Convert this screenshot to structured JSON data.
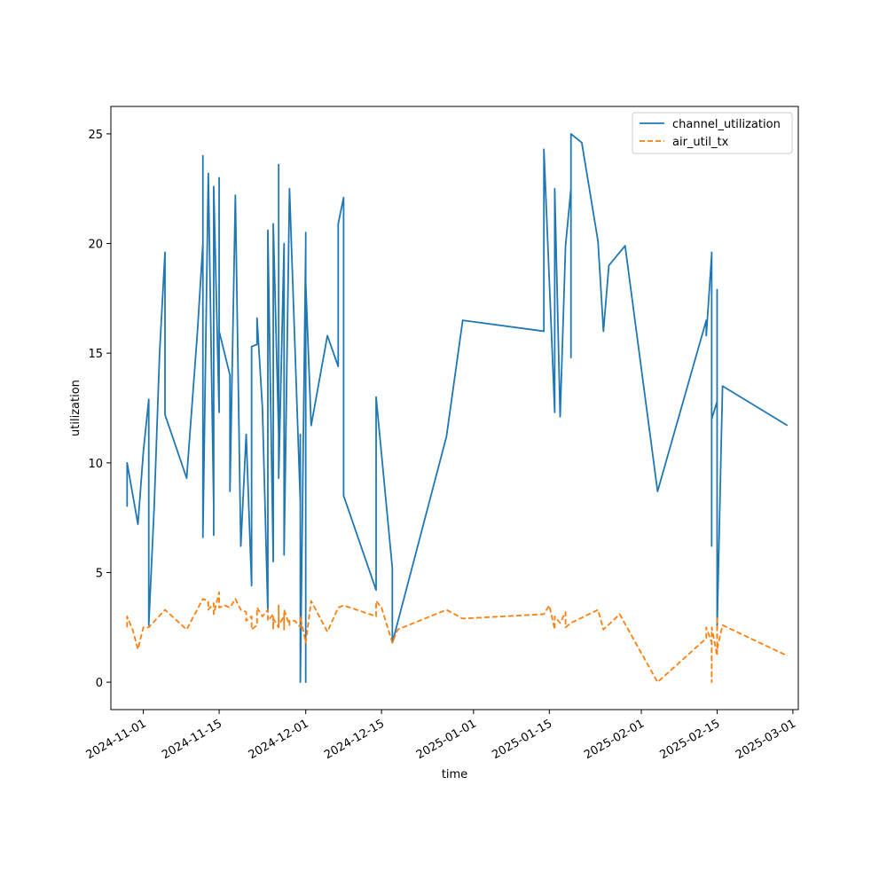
{
  "chart_data": {
    "type": "line",
    "title": "",
    "xlabel": "time",
    "ylabel": "utilization",
    "x_axis_type": "date",
    "xlim": [
      "2024-10-26",
      "2025-03-02"
    ],
    "ylim": [
      -1.25,
      26.25
    ],
    "grid": false,
    "legend_position": "upper right",
    "x_ticks": [
      "2024-11-01",
      "2024-11-15",
      "2024-12-01",
      "2024-12-15",
      "2025-01-01",
      "2025-01-15",
      "2025-02-01",
      "2025-02-15",
      "2025-03-01"
    ],
    "y_ticks": [
      0,
      5,
      10,
      15,
      20,
      25
    ],
    "series": [
      {
        "name": "channel_utilization",
        "color": "#1f77b4",
        "line_style": "solid",
        "points": [
          [
            "2024-10-29",
            8.0
          ],
          [
            "2024-10-29",
            10.0
          ],
          [
            "2024-10-31",
            7.2
          ],
          [
            "2024-11-01",
            10.5
          ],
          [
            "2024-11-02",
            12.9
          ],
          [
            "2024-11-02",
            2.6
          ],
          [
            "2024-11-03",
            8.0
          ],
          [
            "2024-11-04",
            15.0
          ],
          [
            "2024-11-05",
            19.6
          ],
          [
            "2024-11-05",
            12.2
          ],
          [
            "2024-11-09",
            9.3
          ],
          [
            "2024-11-11",
            16.0
          ],
          [
            "2024-11-12",
            20.0
          ],
          [
            "2024-11-12",
            16.8
          ],
          [
            "2024-11-12",
            24.0
          ],
          [
            "2024-11-12",
            6.6
          ],
          [
            "2024-11-13",
            23.2
          ],
          [
            "2024-11-14",
            8.0
          ],
          [
            "2024-11-14",
            19.4
          ],
          [
            "2024-11-14",
            6.7
          ],
          [
            "2024-11-14",
            22.6
          ],
          [
            "2024-11-15",
            12.3
          ],
          [
            "2024-11-15",
            23.0
          ],
          [
            "2024-11-15",
            16.0
          ],
          [
            "2024-11-17",
            14.0
          ],
          [
            "2024-11-17",
            8.7
          ],
          [
            "2024-11-18",
            22.2
          ],
          [
            "2024-11-19",
            6.2
          ],
          [
            "2024-11-20",
            11.3
          ],
          [
            "2024-11-21",
            4.4
          ],
          [
            "2024-11-21",
            15.3
          ],
          [
            "2024-11-22",
            15.4
          ],
          [
            "2024-11-22",
            16.6
          ],
          [
            "2024-11-23",
            12.5
          ],
          [
            "2024-11-24",
            3.2
          ],
          [
            "2024-11-24",
            7.0
          ],
          [
            "2024-11-24",
            5.0
          ],
          [
            "2024-11-24",
            20.6
          ],
          [
            "2024-11-25",
            5.5
          ],
          [
            "2024-11-25",
            20.9
          ],
          [
            "2024-11-26",
            11.3
          ],
          [
            "2024-11-26",
            23.6
          ],
          [
            "2024-11-26",
            9.3
          ],
          [
            "2024-11-27",
            20.0
          ],
          [
            "2024-11-27",
            5.8
          ],
          [
            "2024-11-28",
            22.5
          ],
          [
            "2024-11-28",
            22.5
          ],
          [
            "2024-11-30",
            8.2
          ],
          [
            "2024-11-30",
            11.3
          ],
          [
            "2024-11-30",
            8.2
          ],
          [
            "2024-11-30",
            5.0
          ],
          [
            "2024-11-30",
            0.0
          ],
          [
            "2024-12-01",
            20.0
          ],
          [
            "2024-12-01",
            0.0
          ],
          [
            "2024-12-01",
            20.5
          ],
          [
            "2024-12-01",
            18.2
          ],
          [
            "2024-12-02",
            11.7
          ],
          [
            "2024-12-05",
            15.8
          ],
          [
            "2024-12-07",
            14.4
          ],
          [
            "2024-12-07",
            20.9
          ],
          [
            "2024-12-08",
            22.1
          ],
          [
            "2024-12-08",
            8.5
          ],
          [
            "2024-12-14",
            4.2
          ],
          [
            "2024-12-14",
            13.0
          ],
          [
            "2024-12-17",
            5.2
          ],
          [
            "2024-12-17",
            1.8
          ],
          [
            "2024-12-27",
            11.2
          ],
          [
            "2024-12-30",
            16.5
          ],
          [
            "2025-01-14",
            16.0
          ],
          [
            "2025-01-14",
            24.3
          ],
          [
            "2025-01-16",
            12.3
          ],
          [
            "2025-01-16",
            22.5
          ],
          [
            "2025-01-17",
            12.1
          ],
          [
            "2025-01-18",
            19.9
          ],
          [
            "2025-01-19",
            22.5
          ],
          [
            "2025-01-19",
            14.8
          ],
          [
            "2025-01-19",
            25.0
          ],
          [
            "2025-01-21",
            24.6
          ],
          [
            "2025-01-24",
            20.1
          ],
          [
            "2025-01-25",
            16.0
          ],
          [
            "2025-01-26",
            19.0
          ],
          [
            "2025-01-29",
            19.9
          ],
          [
            "2025-02-04",
            8.7
          ],
          [
            "2025-02-13",
            16.5
          ],
          [
            "2025-02-13",
            15.8
          ],
          [
            "2025-02-14",
            19.5
          ],
          [
            "2025-02-14",
            6.2
          ],
          [
            "2025-02-14",
            19.6
          ],
          [
            "2025-02-14",
            12.0
          ],
          [
            "2025-02-15",
            12.8
          ],
          [
            "2025-02-15",
            17.9
          ],
          [
            "2025-02-15",
            2.5
          ],
          [
            "2025-02-16",
            13.5
          ],
          [
            "2025-02-28",
            11.7
          ]
        ]
      },
      {
        "name": "air_util_tx",
        "color": "#ff7f0e",
        "line_style": "dashed",
        "points": [
          [
            "2024-10-29",
            2.5
          ],
          [
            "2024-10-29",
            3.0
          ],
          [
            "2024-10-30",
            2.4
          ],
          [
            "2024-10-31",
            1.5
          ],
          [
            "2024-11-01",
            2.5
          ],
          [
            "2024-11-02",
            2.5
          ],
          [
            "2024-11-05",
            3.3
          ],
          [
            "2024-11-09",
            2.4
          ],
          [
            "2024-11-12",
            3.8
          ],
          [
            "2024-11-13",
            3.7
          ],
          [
            "2024-11-13",
            3.3
          ],
          [
            "2024-11-14",
            3.6
          ],
          [
            "2024-11-14",
            3.1
          ],
          [
            "2024-11-15",
            4.1
          ],
          [
            "2024-11-15",
            3.4
          ],
          [
            "2024-11-16",
            3.5
          ],
          [
            "2024-11-17",
            3.4
          ],
          [
            "2024-11-18",
            3.8
          ],
          [
            "2024-11-19",
            3.3
          ],
          [
            "2024-11-20",
            3.2
          ],
          [
            "2024-11-20",
            2.8
          ],
          [
            "2024-11-21",
            3.0
          ],
          [
            "2024-11-21",
            2.4
          ],
          [
            "2024-11-22",
            2.6
          ],
          [
            "2024-11-22",
            3.4
          ],
          [
            "2024-11-23",
            3.0
          ],
          [
            "2024-11-24",
            3.3
          ],
          [
            "2024-11-24",
            2.8
          ],
          [
            "2024-11-25",
            3.1
          ],
          [
            "2024-11-25",
            2.4
          ],
          [
            "2024-11-25",
            2.9
          ],
          [
            "2024-11-26",
            2.5
          ],
          [
            "2024-11-26",
            3.5
          ],
          [
            "2024-11-26",
            2.6
          ],
          [
            "2024-11-27",
            3.0
          ],
          [
            "2024-11-27",
            2.4
          ],
          [
            "2024-11-27",
            3.3
          ],
          [
            "2024-11-28",
            2.6
          ],
          [
            "2024-11-28",
            2.8
          ],
          [
            "2024-11-29",
            2.8
          ],
          [
            "2024-11-30",
            2.5
          ],
          [
            "2024-11-30",
            3.0
          ],
          [
            "2024-12-01",
            1.8
          ],
          [
            "2024-12-02",
            3.7
          ],
          [
            "2024-12-05",
            2.3
          ],
          [
            "2024-12-07",
            3.4
          ],
          [
            "2024-12-08",
            3.5
          ],
          [
            "2024-12-14",
            3.0
          ],
          [
            "2024-12-14",
            3.7
          ],
          [
            "2024-12-15",
            3.4
          ],
          [
            "2024-12-17",
            1.8
          ],
          [
            "2024-12-18",
            2.4
          ],
          [
            "2024-12-27",
            3.3
          ],
          [
            "2024-12-30",
            2.9
          ],
          [
            "2025-01-14",
            3.1
          ],
          [
            "2025-01-15",
            3.5
          ],
          [
            "2025-01-16",
            2.4
          ],
          [
            "2025-01-16",
            3.0
          ],
          [
            "2025-01-17",
            2.7
          ],
          [
            "2025-01-18",
            3.2
          ],
          [
            "2025-01-18",
            2.5
          ],
          [
            "2025-01-19",
            2.7
          ],
          [
            "2025-01-24",
            3.3
          ],
          [
            "2025-01-25",
            2.4
          ],
          [
            "2025-01-28",
            3.1
          ],
          [
            "2025-02-04",
            0.0
          ],
          [
            "2025-02-13",
            2.0
          ],
          [
            "2025-02-13",
            2.5
          ],
          [
            "2025-02-14",
            1.8
          ],
          [
            "2025-02-14",
            0.0
          ],
          [
            "2025-02-14",
            2.5
          ],
          [
            "2025-02-15",
            1.2
          ],
          [
            "2025-02-15",
            3.0
          ],
          [
            "2025-02-15",
            1.5
          ],
          [
            "2025-02-16",
            2.6
          ],
          [
            "2025-02-28",
            1.2
          ]
        ]
      }
    ]
  }
}
